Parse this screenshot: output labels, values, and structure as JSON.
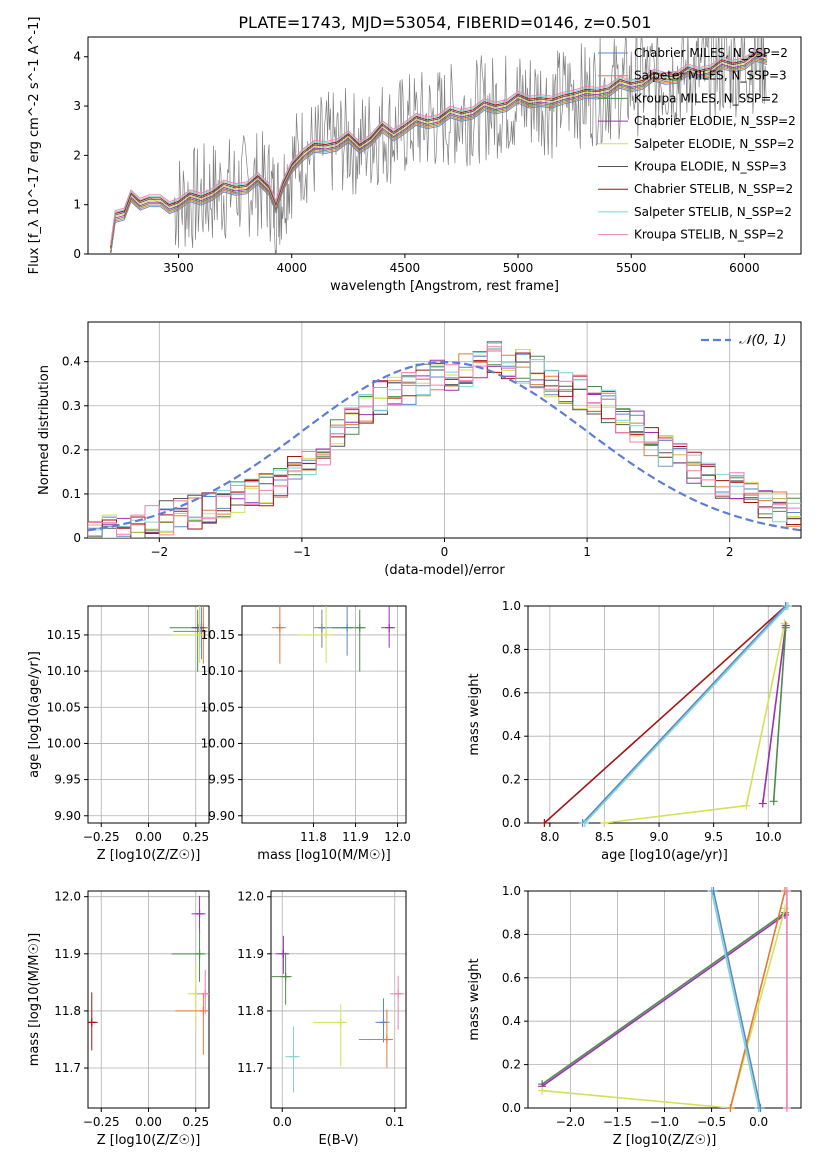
{
  "title": "PLATE=1743, MJD=53054, FIBERID=0146, z=0.501",
  "colors": {
    "spectrum": "#808080",
    "normal_curve": "#5b7fd6",
    "series": [
      "#7f7f7f",
      "#5b87c9",
      "#e07b39",
      "#4c8c4c",
      "#9b30b0",
      "#d4e157",
      "#555555",
      "#a31515",
      "#80d4d4",
      "#f07fb0"
    ]
  },
  "chart_data": [
    {
      "id": "spectrum",
      "type": "line",
      "xlabel": "wavelength [Angstrom, rest frame]",
      "ylabel": "Flux [f_λ 10^-17 erg cm^-2 s^-1 A^-1]",
      "xlim": [
        3100,
        6250
      ],
      "ylim": [
        0,
        4.4
      ],
      "xticks": [
        3500,
        4000,
        4500,
        5000,
        5500,
        6000
      ],
      "yticks": [
        0,
        1,
        2,
        3,
        4
      ],
      "grid": false,
      "legend_position": "top-right",
      "legend": [
        "Chabrier MILES, N_SSP=2",
        "Salpeter MILES, N_SSP=3",
        "Kroupa MILES, N_SSP=2",
        "Chabrier ELODIE, N_SSP=2",
        "Salpeter ELODIE, N_SSP=2",
        "Kroupa ELODIE, N_SSP=3",
        "Chabrier STELIB, N_SSP=2",
        "Salpeter STELIB, N_SSP=2",
        "Kroupa STELIB, N_SSP=2"
      ],
      "model_points": [
        [
          3200,
          0.0
        ],
        [
          3220,
          0.8
        ],
        [
          3260,
          0.85
        ],
        [
          3290,
          1.1
        ],
        [
          3330,
          1.05
        ],
        [
          3370,
          1.12
        ],
        [
          3420,
          1.0
        ],
        [
          3460,
          0.98
        ],
        [
          3500,
          1.05
        ],
        [
          3550,
          1.1
        ],
        [
          3600,
          1.15
        ],
        [
          3650,
          1.25
        ],
        [
          3700,
          1.3
        ],
        [
          3750,
          1.35
        ],
        [
          3800,
          1.38
        ],
        [
          3850,
          1.45
        ],
        [
          3900,
          1.35
        ],
        [
          3930,
          1.0
        ],
        [
          3960,
          1.3
        ],
        [
          4000,
          1.8
        ],
        [
          4050,
          2.05
        ],
        [
          4100,
          2.1
        ],
        [
          4150,
          2.2
        ],
        [
          4200,
          2.25
        ],
        [
          4250,
          2.3
        ],
        [
          4300,
          2.2
        ],
        [
          4350,
          2.35
        ],
        [
          4400,
          2.5
        ],
        [
          4450,
          2.45
        ],
        [
          4500,
          2.6
        ],
        [
          4550,
          2.65
        ],
        [
          4600,
          2.7
        ],
        [
          4650,
          2.75
        ],
        [
          4700,
          2.8
        ],
        [
          4750,
          2.85
        ],
        [
          4800,
          2.9
        ],
        [
          4850,
          2.95
        ],
        [
          4900,
          3.0
        ],
        [
          4950,
          3.05
        ],
        [
          5000,
          3.1
        ],
        [
          5050,
          3.12
        ],
        [
          5100,
          3.15
        ],
        [
          5150,
          3.0
        ],
        [
          5200,
          3.2
        ],
        [
          5250,
          3.25
        ],
        [
          5300,
          3.2
        ],
        [
          5350,
          3.3
        ],
        [
          5400,
          3.35
        ],
        [
          5450,
          3.4
        ],
        [
          5500,
          3.45
        ],
        [
          5550,
          3.5
        ],
        [
          5600,
          3.55
        ],
        [
          5650,
          3.6
        ],
        [
          5700,
          3.62
        ],
        [
          5750,
          3.65
        ],
        [
          5800,
          3.7
        ],
        [
          5850,
          3.75
        ],
        [
          5900,
          3.8
        ],
        [
          5950,
          3.85
        ],
        [
          6000,
          3.9
        ],
        [
          6050,
          3.95
        ],
        [
          6100,
          4.0
        ]
      ]
    },
    {
      "id": "residual_hist",
      "type": "line",
      "xlabel": "(data-model)/error",
      "ylabel": "Normed distribution",
      "xlim": [
        -2.5,
        2.5
      ],
      "ylim": [
        0,
        0.49
      ],
      "xticks": [
        -2,
        -1,
        0,
        1,
        2
      ],
      "yticks": [
        0.0,
        0.1,
        0.2,
        0.3,
        0.4
      ],
      "grid": true,
      "legend_position": "top-right",
      "legend": [
        "𝒩(0, 1)"
      ],
      "hist_shape": {
        "bins_x": [
          -2.5,
          -2.4,
          -2.3,
          -2.2,
          -2.1,
          -2.0,
          -1.9,
          -1.8,
          -1.7,
          -1.6,
          -1.5,
          -1.4,
          -1.3,
          -1.2,
          -1.1,
          -1.0,
          -0.9,
          -0.8,
          -0.7,
          -0.6,
          -0.5,
          -0.4,
          -0.3,
          -0.2,
          -0.1,
          0.0,
          0.1,
          0.2,
          0.3,
          0.4,
          0.5,
          0.6,
          0.7,
          0.8,
          0.9,
          1.0,
          1.1,
          1.2,
          1.3,
          1.4,
          1.5,
          1.6,
          1.7,
          1.8,
          1.9,
          2.0,
          2.1,
          2.2,
          2.3,
          2.4,
          2.5
        ],
        "heights": [
          0.01,
          0.015,
          0.02,
          0.03,
          0.035,
          0.045,
          0.05,
          0.06,
          0.07,
          0.08,
          0.09,
          0.1,
          0.11,
          0.13,
          0.15,
          0.18,
          0.2,
          0.23,
          0.27,
          0.3,
          0.32,
          0.33,
          0.34,
          0.36,
          0.37,
          0.36,
          0.38,
          0.4,
          0.41,
          0.4,
          0.39,
          0.38,
          0.36,
          0.34,
          0.33,
          0.32,
          0.3,
          0.27,
          0.25,
          0.22,
          0.2,
          0.18,
          0.16,
          0.13,
          0.12,
          0.11,
          0.09,
          0.08,
          0.07,
          0.06
        ]
      }
    },
    {
      "id": "age_vs_Z",
      "type": "scatter",
      "xlabel": "Z [log10(Z/Z☉)]",
      "ylabel": "age [log10(age/yr)]",
      "xlim": [
        -0.32,
        0.32
      ],
      "ylim": [
        9.89,
        10.19
      ],
      "xticks": [
        -0.25,
        0.0,
        0.25
      ],
      "xticklabels": [
        "-0.25",
        "0.00",
        "0.25"
      ],
      "yticks": [
        9.9,
        9.95,
        10.0,
        10.05,
        10.1,
        10.15
      ],
      "yticklabels": [
        "9.90",
        "9.95",
        "10.00",
        "10.05",
        "10.10",
        "10.15"
      ],
      "grid": true,
      "points": [
        {
          "x": 0.27,
          "y": 10.16,
          "c": 0
        },
        {
          "x": 0.28,
          "y": 10.155,
          "c": 1
        },
        {
          "x": 0.29,
          "y": 10.16,
          "c": 2
        },
        {
          "x": 0.26,
          "y": 10.16,
          "c": 3
        },
        {
          "x": 0.27,
          "y": 10.16,
          "c": 4
        },
        {
          "x": 0.27,
          "y": 10.15,
          "c": 5
        }
      ]
    },
    {
      "id": "age_vs_mass",
      "type": "scatter",
      "xlabel": "mass [log10(M/M☉)]",
      "ylabel": "",
      "xlim": [
        11.63,
        12.02
      ],
      "ylim": [
        9.89,
        10.19
      ],
      "xticks": [
        11.8,
        11.9,
        12.0
      ],
      "xticklabels": [
        "11.8",
        "11.9",
        "12.0"
      ],
      "yticks": [
        9.9,
        9.95,
        10.0,
        10.05,
        10.1,
        10.15
      ],
      "yticklabels": [
        "9.90",
        "9.95",
        "10.00",
        "10.05",
        "10.10",
        "10.15"
      ],
      "grid": true,
      "points": [
        {
          "x": 11.82,
          "y": 10.16,
          "c": 0
        },
        {
          "x": 11.88,
          "y": 10.16,
          "c": 1
        },
        {
          "x": 11.72,
          "y": 10.16,
          "c": 2
        },
        {
          "x": 11.91,
          "y": 10.16,
          "c": 3
        },
        {
          "x": 11.98,
          "y": 10.16,
          "c": 4
        },
        {
          "x": 11.83,
          "y": 10.15,
          "c": 5
        }
      ]
    },
    {
      "id": "massweight_vs_age",
      "type": "line",
      "xlabel": "age [log10(age/yr)]",
      "ylabel": "mass weight",
      "xlim": [
        7.8,
        10.3
      ],
      "ylim": [
        0,
        1.0
      ],
      "xticks": [
        8.0,
        8.5,
        9.0,
        9.5,
        10.0
      ],
      "xticklabels": [
        "8.0",
        "8.5",
        "9.0",
        "9.5",
        "10.0"
      ],
      "yticks": [
        0.0,
        0.2,
        0.4,
        0.6,
        0.8,
        1.0
      ],
      "yticklabels": [
        "0.0",
        "0.2",
        "0.4",
        "0.6",
        "0.8",
        "1.0"
      ],
      "grid": true,
      "series": [
        {
          "c": 7,
          "points": [
            [
              7.95,
              0.0
            ],
            [
              10.16,
              1.0
            ]
          ]
        },
        {
          "c": 1,
          "points": [
            [
              8.3,
              0.0
            ],
            [
              10.16,
              1.0
            ]
          ]
        },
        {
          "c": 8,
          "points": [
            [
              8.32,
              0.0
            ],
            [
              10.18,
              1.0
            ]
          ]
        },
        {
          "c": 5,
          "points": [
            [
              8.5,
              0.0
            ],
            [
              9.8,
              0.08
            ],
            [
              10.15,
              0.92
            ]
          ]
        },
        {
          "c": 4,
          "points": [
            [
              9.95,
              0.09
            ],
            [
              10.16,
              0.91
            ]
          ]
        },
        {
          "c": 3,
          "points": [
            [
              10.05,
              0.1
            ],
            [
              10.16,
              0.9
            ]
          ]
        }
      ]
    },
    {
      "id": "mass_vs_Z",
      "type": "scatter",
      "xlabel": "Z [log10(Z/Z☉)]",
      "ylabel": "mass [log10(M/M☉)]",
      "xlim": [
        -0.32,
        0.32
      ],
      "ylim": [
        11.63,
        12.01
      ],
      "xticks": [
        -0.25,
        0.0,
        0.25
      ],
      "xticklabels": [
        "-0.25",
        "0.00",
        "0.25"
      ],
      "yticks": [
        11.7,
        11.8,
        11.9,
        12.0
      ],
      "yticklabels": [
        "11.7",
        "11.8",
        "11.9",
        "12.0"
      ],
      "grid": true,
      "points": [
        {
          "x": 0.27,
          "y": 11.97,
          "c": 4
        },
        {
          "x": 0.27,
          "y": 11.9,
          "c": 3
        },
        {
          "x": 0.25,
          "y": 11.83,
          "c": 5
        },
        {
          "x": 0.29,
          "y": 11.8,
          "c": 2
        },
        {
          "x": 0.3,
          "y": 11.83,
          "c": 9
        },
        {
          "x": -0.3,
          "y": 11.78,
          "c": 7
        }
      ]
    },
    {
      "id": "mass_vs_EBV",
      "type": "scatter",
      "xlabel": "E(B-V)",
      "ylabel": "",
      "xlim": [
        -0.01,
        0.11
      ],
      "ylim": [
        11.63,
        12.01
      ],
      "xticks": [
        0.0,
        0.1
      ],
      "xticklabels": [
        "0.0",
        "0.1"
      ],
      "yticks": [
        11.7,
        11.8,
        11.9,
        12.0
      ],
      "yticklabels": [
        "11.7",
        "11.8",
        "11.9",
        "12.0"
      ],
      "grid": true,
      "points": [
        {
          "x": 0.001,
          "y": 11.9,
          "c": 4
        },
        {
          "x": 0.003,
          "y": 11.86,
          "c": 3
        },
        {
          "x": 0.01,
          "y": 11.72,
          "c": 8
        },
        {
          "x": 0.052,
          "y": 11.78,
          "c": 5
        },
        {
          "x": 0.09,
          "y": 11.78,
          "c": 1
        },
        {
          "x": 0.093,
          "y": 11.75,
          "c": 2
        },
        {
          "x": 0.103,
          "y": 11.83,
          "c": 9
        }
      ]
    },
    {
      "id": "massweight_vs_Z",
      "type": "line",
      "xlabel": "Z [log10(Z/Z☉)]",
      "ylabel": "mass weight",
      "xlim": [
        -2.45,
        0.45
      ],
      "ylim": [
        0,
        1.0
      ],
      "xticks": [
        -2.0,
        -1.5,
        -1.0,
        -0.5,
        0.0
      ],
      "xticklabels": [
        "-2.0",
        "-1.5",
        "-1.0",
        "-0.5",
        "0.0"
      ],
      "yticks": [
        0.0,
        0.2,
        0.4,
        0.6,
        0.8,
        1.0
      ],
      "yticklabels": [
        "0.0",
        "0.2",
        "0.4",
        "0.6",
        "0.8",
        "1.0"
      ],
      "grid": true,
      "series": [
        {
          "c": 3,
          "points": [
            [
              -2.3,
              0.11
            ],
            [
              0.28,
              0.9
            ]
          ]
        },
        {
          "c": 4,
          "points": [
            [
              -2.3,
              0.1
            ],
            [
              0.28,
              0.89
            ]
          ]
        },
        {
          "c": 5,
          "points": [
            [
              -2.3,
              0.08
            ],
            [
              -0.3,
              0.0
            ],
            [
              0.28,
              0.92
            ]
          ]
        },
        {
          "c": 2,
          "points": [
            [
              -0.3,
              0.0
            ],
            [
              0.28,
              1.0
            ]
          ]
        },
        {
          "c": 8,
          "points": [
            [
              -0.5,
              1.0
            ],
            [
              0.0,
              0.0
            ]
          ]
        },
        {
          "c": 1,
          "points": [
            [
              -0.48,
              1.0
            ],
            [
              0.02,
              0.0
            ]
          ]
        },
        {
          "c": 9,
          "points": [
            [
              0.3,
              0.0
            ],
            [
              0.3,
              1.0
            ]
          ]
        }
      ]
    }
  ]
}
